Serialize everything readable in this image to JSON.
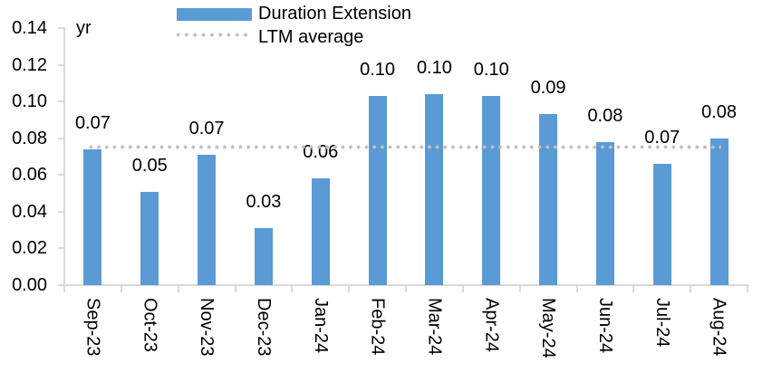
{
  "chart_data": {
    "type": "bar",
    "title": "",
    "unit_label": "yr",
    "categories": [
      "Sep-23",
      "Oct-23",
      "Nov-23",
      "Dec-23",
      "Jan-24",
      "Feb-24",
      "Mar-24",
      "Apr-24",
      "May-24",
      "Jun-24",
      "Jul-24",
      "Aug-24"
    ],
    "series": [
      {
        "name": "Duration Extension",
        "type": "bar",
        "color": "#5B9BD5",
        "values": [
          0.074,
          0.051,
          0.071,
          0.031,
          0.058,
          0.103,
          0.104,
          0.103,
          0.093,
          0.078,
          0.066,
          0.08
        ],
        "data_labels": [
          "0.07",
          "0.05",
          "0.07",
          "0.03",
          "0.06",
          "0.10",
          "0.10",
          "0.10",
          "0.09",
          "0.08",
          "0.07",
          "0.08"
        ]
      },
      {
        "name": "LTM average",
        "type": "line",
        "line_style": "dotted",
        "color": "#BFBFBF",
        "value": 0.075
      }
    ],
    "y_axis": {
      "min": 0.0,
      "max": 0.14,
      "step": 0.02,
      "tick_labels": [
        "0.00",
        "0.02",
        "0.04",
        "0.06",
        "0.08",
        "0.10",
        "0.12",
        "0.14"
      ]
    },
    "x_axis": {
      "label_rotation": "vertical"
    },
    "legend": {
      "position": "top-left"
    },
    "grid": false,
    "colors": {
      "bar": "#5B9BD5",
      "ltm_dots": "#BFBFBF",
      "axis": "#D9D9D9",
      "text": "#000000",
      "background": "#FFFFFF"
    }
  }
}
